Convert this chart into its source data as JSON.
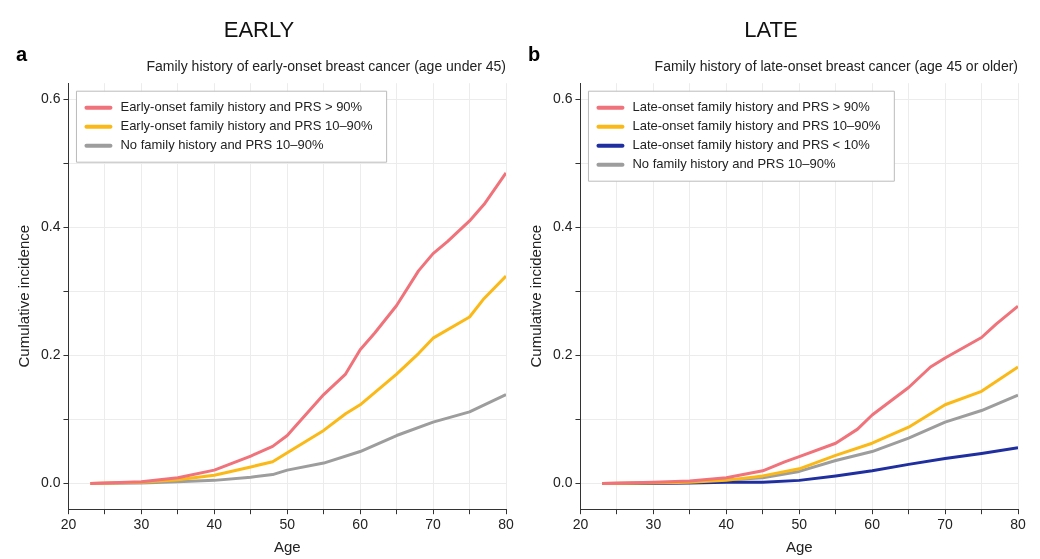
{
  "chart_data": [
    {
      "type": "line",
      "title": "EARLY",
      "subtitle": "Family history of early-onset breast cancer (age under 45)",
      "annotations": [
        "a"
      ],
      "xlabel": "Age",
      "ylabel": "Cumulative incidence",
      "xlim": [
        20,
        80
      ],
      "ylim": [
        -0.04,
        0.625
      ],
      "xticks": [
        20,
        {
          "value": 25,
          "label": null
        },
        30,
        {
          "value": 35,
          "label": null
        },
        40,
        {
          "value": 45,
          "label": null
        },
        50,
        {
          "value": 55,
          "label": null
        },
        60,
        {
          "value": 65,
          "label": null
        },
        70,
        {
          "value": 75,
          "label": null
        },
        80
      ],
      "yticks": [
        {
          "value": 0,
          "label": "0.0"
        },
        {
          "value": 0.1,
          "label": null
        },
        0.2,
        {
          "value": 0.3,
          "label": null
        },
        0.4,
        {
          "value": 0.5,
          "label": null
        },
        0.6
      ],
      "grid": true,
      "legend": "top left",
      "line_style": "solid",
      "marker": "none",
      "series": [
        {
          "name": "Early-onset family history and PRS > 90%",
          "color": "#f0727a",
          "x": [
            23,
            30,
            35,
            40,
            45,
            48,
            50,
            51,
            55,
            58,
            60,
            62,
            65,
            68,
            70,
            72,
            75,
            77,
            80
          ],
          "values": [
            0,
            0.003,
            0.009,
            0.021,
            0.043,
            0.058,
            0.075,
            0.088,
            0.139,
            0.171,
            0.209,
            0.235,
            0.278,
            0.332,
            0.359,
            0.378,
            0.41,
            0.436,
            0.485
          ]
        },
        {
          "name": "Early-onset family history and PRS 10–90%",
          "color": "#fbb917",
          "x": [
            23,
            30,
            35,
            40,
            45,
            48,
            50,
            55,
            58,
            60,
            65,
            68,
            70,
            75,
            77,
            80
          ],
          "values": [
            0,
            0.002,
            0.006,
            0.013,
            0.026,
            0.034,
            0.048,
            0.083,
            0.109,
            0.123,
            0.171,
            0.203,
            0.227,
            0.26,
            0.289,
            0.324
          ]
        },
        {
          "name": "No family history and PRS 10–90%",
          "color": "#9d9d9d",
          "x": [
            23,
            30,
            35,
            40,
            45,
            48,
            50,
            55,
            60,
            65,
            70,
            75,
            80
          ],
          "values": [
            0,
            0.001,
            0.003,
            0.005,
            0.01,
            0.014,
            0.021,
            0.032,
            0.05,
            0.075,
            0.096,
            0.112,
            0.139
          ]
        }
      ]
    },
    {
      "type": "line",
      "title": "LATE",
      "subtitle": "Family history of late-onset breast cancer (age 45 or older)",
      "annotations": [
        "b"
      ],
      "xlabel": "Age",
      "ylabel": "Cumulative incidence",
      "xlim": [
        20,
        80
      ],
      "ylim": [
        -0.04,
        0.625
      ],
      "xticks": [
        20,
        {
          "value": 25,
          "label": null
        },
        30,
        {
          "value": 35,
          "label": null
        },
        40,
        {
          "value": 45,
          "label": null
        },
        50,
        {
          "value": 55,
          "label": null
        },
        60,
        {
          "value": 65,
          "label": null
        },
        70,
        {
          "value": 75,
          "label": null
        },
        80
      ],
      "yticks": [
        {
          "value": 0,
          "label": "0.0"
        },
        {
          "value": 0.1,
          "label": null
        },
        0.2,
        {
          "value": 0.3,
          "label": null
        },
        0.4,
        {
          "value": 0.5,
          "label": null
        },
        0.6
      ],
      "grid": true,
      "legend": "top left",
      "line_style": "solid",
      "marker": "none",
      "series": [
        {
          "name": "Late-onset family history and PRS > 90%",
          "color": "#f0727a",
          "x": [
            23,
            30,
            35,
            40,
            45,
            48,
            50,
            55,
            58,
            60,
            65,
            68,
            70,
            75,
            77,
            80
          ],
          "values": [
            0,
            0.002,
            0.004,
            0.009,
            0.02,
            0.034,
            0.042,
            0.063,
            0.085,
            0.107,
            0.15,
            0.182,
            0.196,
            0.228,
            0.249,
            0.277
          ]
        },
        {
          "name": "Late-onset family history and PRS 10–90%",
          "color": "#fbb917",
          "x": [
            23,
            30,
            35,
            40,
            45,
            50,
            55,
            60,
            65,
            70,
            75,
            80
          ],
          "values": [
            0,
            0.001,
            0.002,
            0.005,
            0.012,
            0.023,
            0.044,
            0.063,
            0.088,
            0.123,
            0.144,
            0.182
          ]
        },
        {
          "name": "Late-onset family history and PRS < 10%",
          "color": "#1f2fa0",
          "x": [
            23,
            30,
            35,
            40,
            45,
            50,
            55,
            60,
            65,
            70,
            75,
            80
          ],
          "values": [
            0,
            0,
            0.001,
            0.002,
            0.002,
            0.005,
            0.012,
            0.02,
            0.03,
            0.039,
            0.047,
            0.056
          ]
        },
        {
          "name": "No family history and PRS 10–90%",
          "color": "#9d9d9d",
          "x": [
            23,
            30,
            35,
            40,
            45,
            50,
            55,
            60,
            65,
            70,
            75,
            80
          ],
          "values": [
            0,
            null,
            0.002,
            null,
            0.009,
            0.019,
            0.036,
            0.05,
            0.071,
            0.096,
            0.114,
            0.138
          ]
        }
      ]
    }
  ]
}
